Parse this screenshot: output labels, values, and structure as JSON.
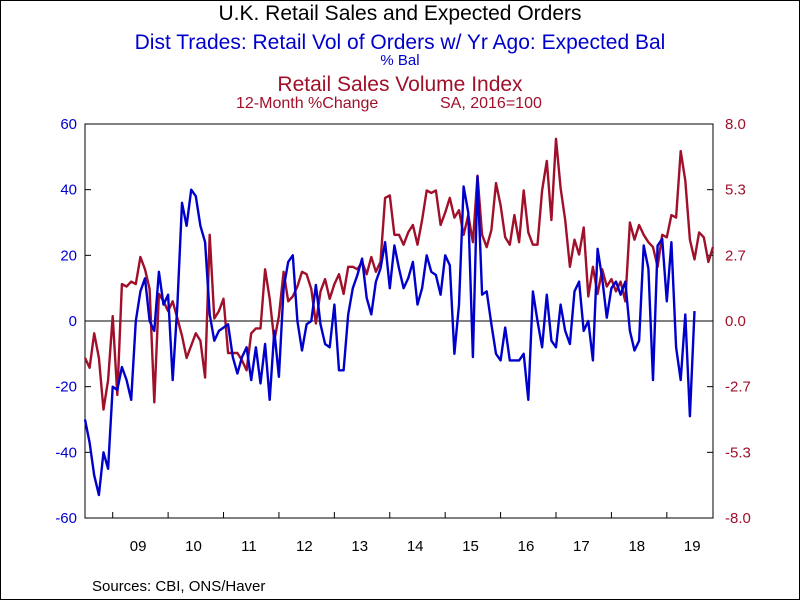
{
  "chart_data": {
    "type": "line",
    "title": "U.K. Retail Sales and Expected Orders",
    "series": [
      {
        "name": "Dist Trades: Retail Vol of Orders w/ Yr Ago: Expected Bal",
        "unit": "% Bal",
        "axis": "left",
        "color": "#0000cc",
        "start": "2008-07",
        "values": [
          -30,
          -37,
          -47,
          -53,
          -40,
          -45,
          -20,
          -21,
          -14,
          -18,
          -24,
          0,
          9,
          13,
          0,
          -3,
          15,
          5,
          8,
          -18,
          5,
          36,
          29,
          40,
          38,
          29,
          24,
          2,
          -6,
          -3,
          -2,
          -1,
          -11,
          -16,
          -11,
          -8,
          -18,
          -8,
          -19,
          -7,
          -24,
          -3,
          -17,
          10,
          18,
          20,
          0,
          -9,
          -1,
          0,
          11,
          -1,
          -7,
          -8,
          5,
          -15,
          -15,
          2,
          10,
          14,
          19,
          7,
          2,
          12,
          16,
          24,
          10,
          23,
          16,
          10,
          13,
          18,
          5,
          10,
          20,
          15,
          14,
          8,
          20,
          17,
          -10,
          5,
          41,
          33,
          -11,
          44,
          8,
          9,
          -1,
          -10,
          -12,
          -2,
          -12,
          -12,
          -12,
          -10,
          -24,
          9,
          0,
          -8,
          8,
          -6,
          -8,
          5,
          -3,
          -7,
          9,
          12,
          -3,
          0,
          -12,
          22,
          13,
          1,
          10,
          12,
          8,
          12,
          -3,
          -9,
          -6,
          23,
          16,
          -18,
          23,
          25,
          6,
          24,
          -8,
          -18,
          2,
          -29,
          3
        ],
        "ylim": [
          -60,
          60
        ],
        "yticks": [
          "60",
          "40",
          "20",
          "0",
          "-20",
          "-40",
          "-60"
        ]
      },
      {
        "name": "Retail Sales Volume Index",
        "unit": "12-Month %Change   SA, 2016=100",
        "axis": "right",
        "color": "#a0102a",
        "start": "2008-07",
        "values": [
          -1.5,
          -1.9,
          -0.5,
          -1.5,
          -3.6,
          -2.4,
          0.2,
          -3.0,
          1.5,
          1.4,
          1.6,
          1.5,
          2.6,
          2.1,
          1.3,
          -3.3,
          1.1,
          0.8,
          0.4,
          0.8,
          0.1,
          -0.6,
          -1.5,
          -1.0,
          -0.5,
          -0.8,
          -2.3,
          3.5,
          0.1,
          0.4,
          0.9,
          -1.3,
          -1.3,
          -1.3,
          -1.6,
          -2.0,
          -0.5,
          -0.3,
          -0.3,
          2.1,
          0.9,
          -0.8,
          0.2,
          2.0,
          0.8,
          1.0,
          1.4,
          2.0,
          1.9,
          1.3,
          -0.1,
          1.2,
          1.7,
          0.9,
          1.5,
          1.9,
          1.1,
          2.2,
          2.2,
          2.1,
          2.4,
          1.9,
          2.6,
          2.0,
          2.4,
          5.0,
          5.1,
          3.5,
          3.5,
          3.1,
          3.6,
          3.9,
          3.1,
          4.1,
          5.3,
          5.2,
          5.3,
          3.9,
          4.4,
          5.0,
          4.2,
          4.5,
          3.5,
          4.3,
          3.2,
          5.9,
          3.5,
          3.0,
          3.7,
          5.6,
          4.7,
          3.4,
          3.1,
          4.3,
          3.2,
          5.3,
          3.6,
          3.1,
          3.1,
          5.3,
          6.5,
          4.1,
          7.4,
          5.4,
          4.1,
          2.2,
          3.3,
          2.7,
          3.8,
          1.0,
          2.2,
          1.1,
          2.1,
          1.4,
          1.7,
          1.2,
          1.6,
          0.8,
          4.0,
          3.3,
          3.9,
          3.5,
          3.2,
          3.0,
          2.2,
          3.5,
          3.4,
          4.3,
          4.2,
          6.9,
          5.7,
          3.3,
          2.5,
          3.6,
          3.4,
          2.4,
          3.0
        ],
        "ylim": [
          -8,
          8
        ],
        "yticks": [
          "8.0",
          "5.3",
          "2.7",
          "0.0",
          "-2.7",
          "-5.3",
          "-8.0"
        ]
      }
    ],
    "x_labels": [
      "09",
      "10",
      "11",
      "12",
      "13",
      "14",
      "15",
      "16",
      "17",
      "18",
      "19"
    ],
    "xlim": [
      "2008-07",
      "2019-11"
    ],
    "zero_line": true,
    "grid": false,
    "legend": "none (series titles stacked at top)"
  },
  "text": {
    "title": "U.K. Retail Sales and Expected Orders",
    "left_series_title": "Dist Trades: Retail Vol of Orders w/ Yr Ago: Expected Bal",
    "left_unit": "% Bal",
    "right_series_title": "Retail Sales Volume Index",
    "right_unit_a": "12-Month %Change",
    "right_unit_b": "SA, 2016=100",
    "source": "Sources:  CBI, ONS/Haver"
  }
}
